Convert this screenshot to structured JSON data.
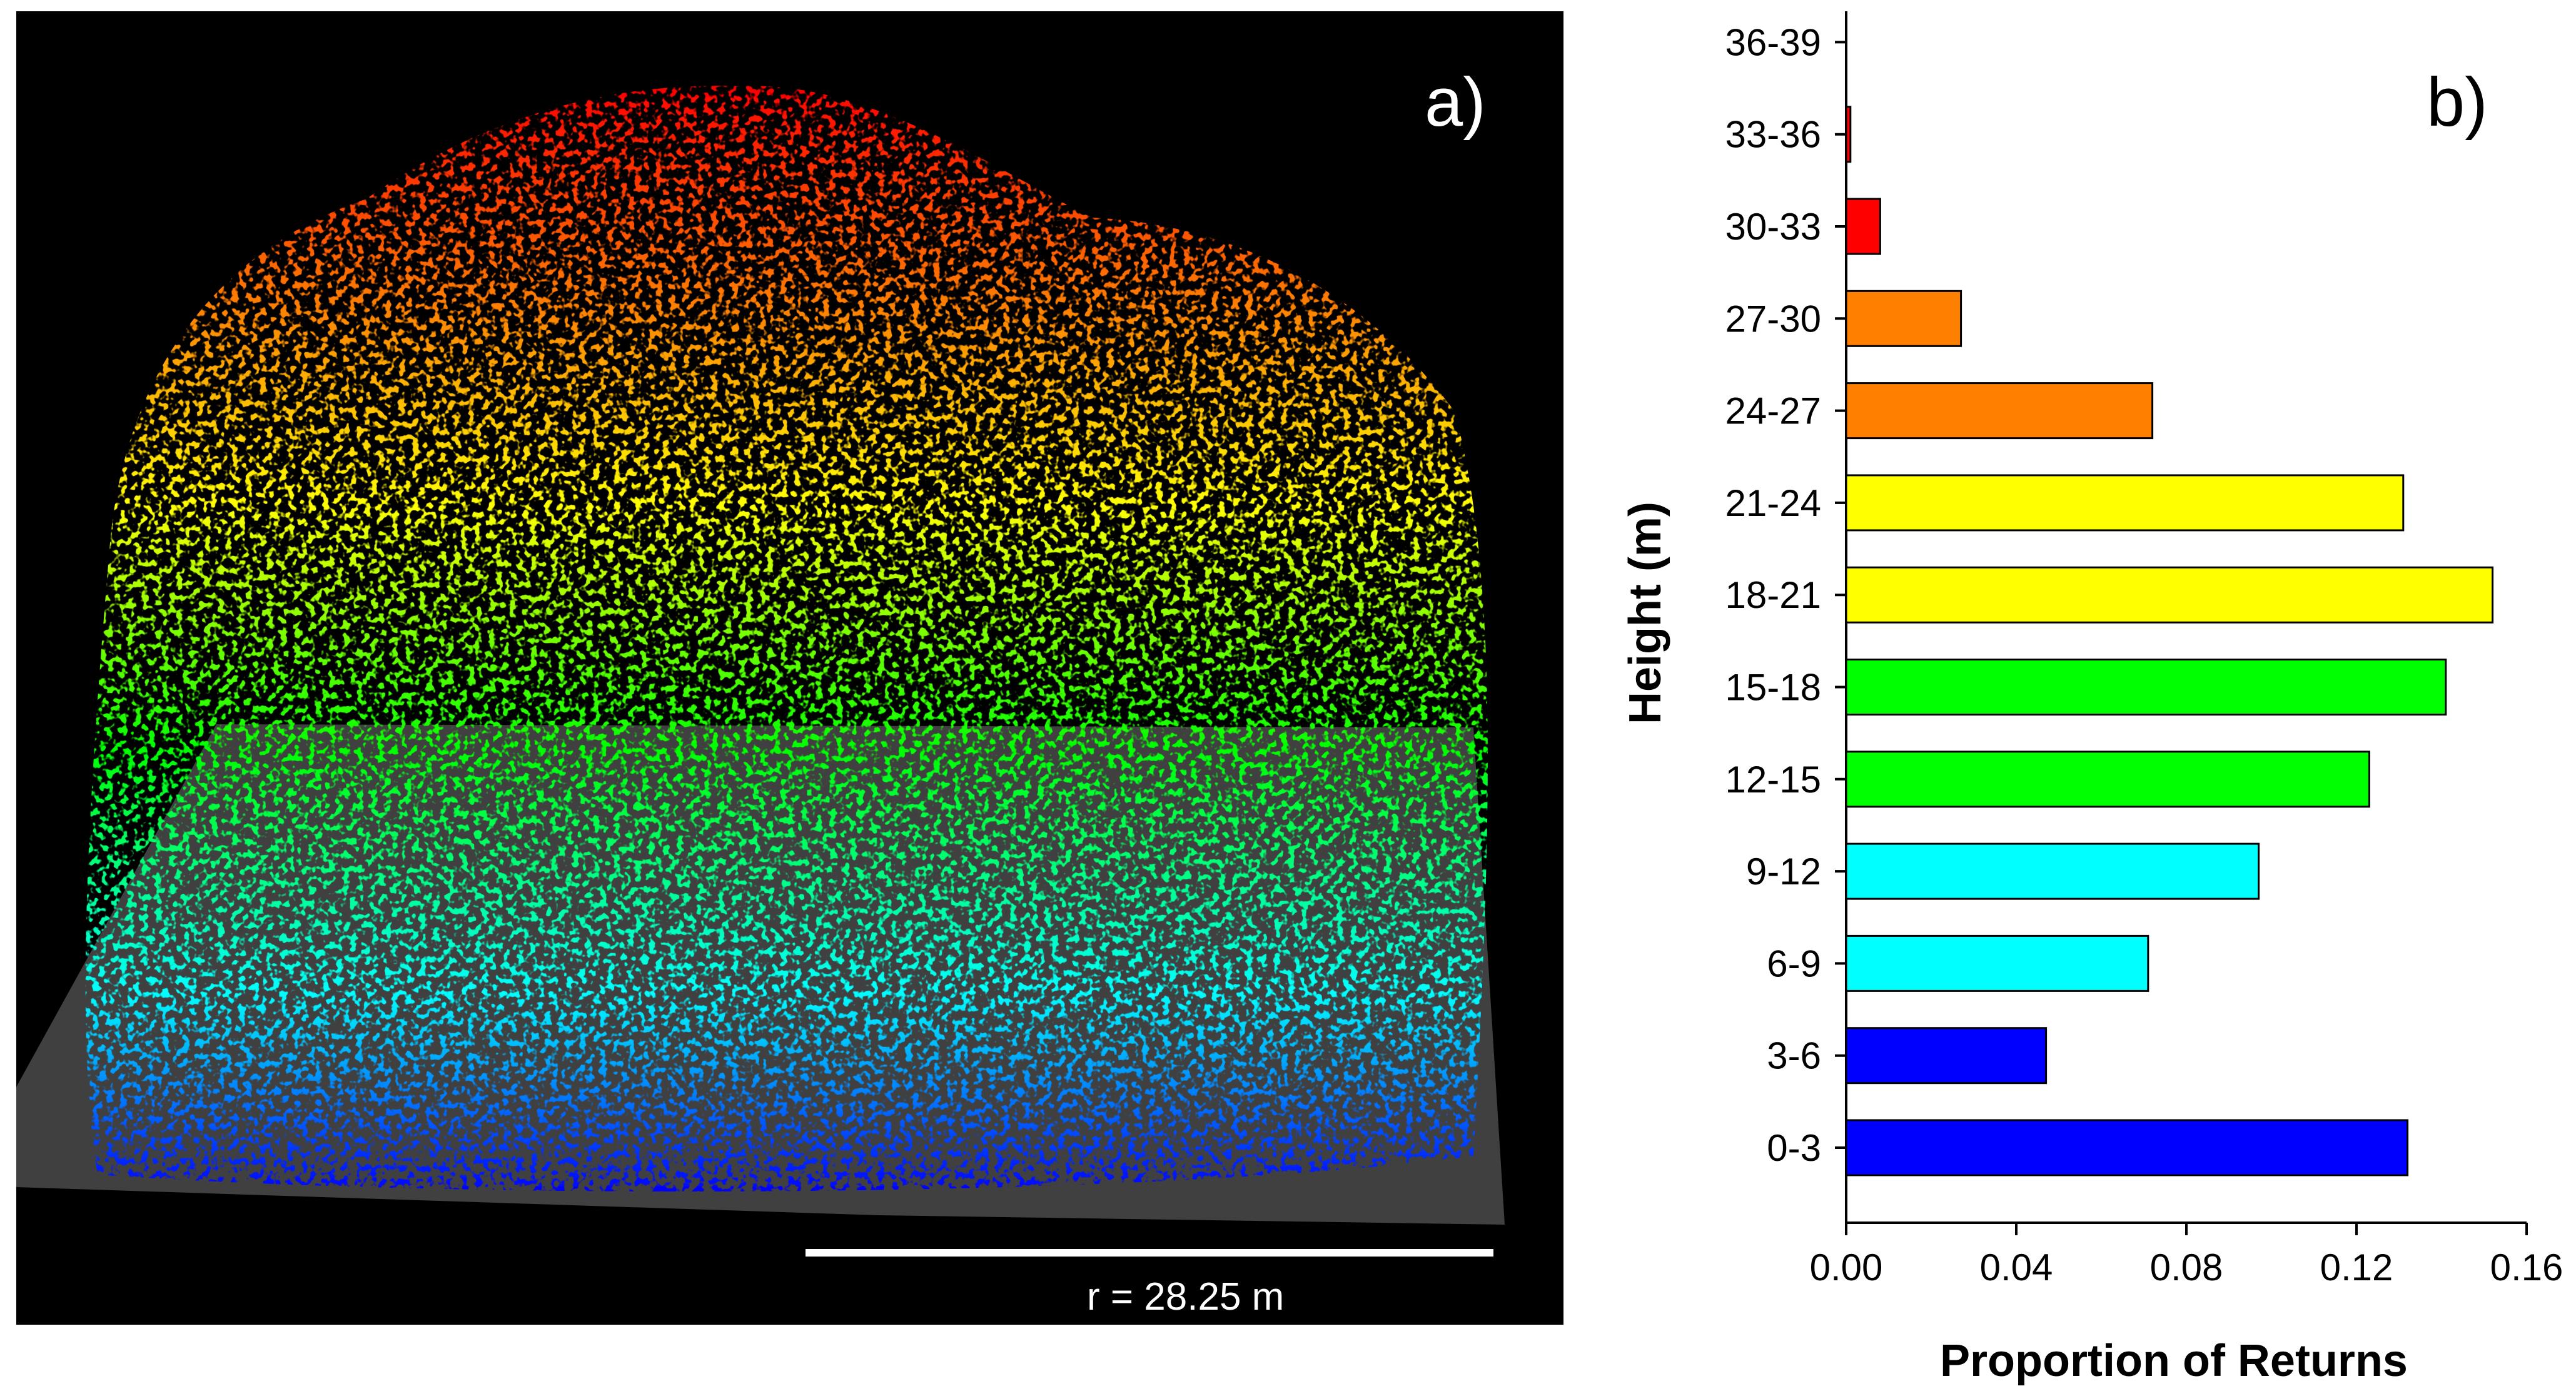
{
  "panel_a": {
    "label": "a)",
    "scale_text": "r = 28.25 m",
    "colors": {
      "background": "#000000",
      "ground": "#404040",
      "ramp": [
        "#0000ff",
        "#00ffff",
        "#00ff00",
        "#ffff00",
        "#ff8000",
        "#ff0000"
      ]
    }
  },
  "panel_b": {
    "label": "b)"
  },
  "chart_data": {
    "type": "bar",
    "orientation": "horizontal",
    "categories": [
      "0-3",
      "3-6",
      "6-9",
      "9-12",
      "12-15",
      "15-18",
      "18-21",
      "21-24",
      "24-27",
      "27-30",
      "30-33",
      "33-36",
      "36-39"
    ],
    "values": [
      0.132,
      0.047,
      0.071,
      0.097,
      0.123,
      0.141,
      0.152,
      0.131,
      0.072,
      0.027,
      0.008,
      0.001,
      0.0
    ],
    "colors": [
      "#0000ff",
      "#0000ff",
      "#00ffff",
      "#00ffff",
      "#00ff00",
      "#00ff00",
      "#ffff00",
      "#ffff00",
      "#ff8000",
      "#ff8000",
      "#ff0000",
      "#ff0000",
      "#ff0000"
    ],
    "xlabel": "Proportion of Returns",
    "ylabel": "Height (m)",
    "xlim": [
      0,
      0.16
    ],
    "xticks": [
      "0.00",
      "0.04",
      "0.08",
      "0.12",
      "0.16"
    ],
    "grid": false
  }
}
